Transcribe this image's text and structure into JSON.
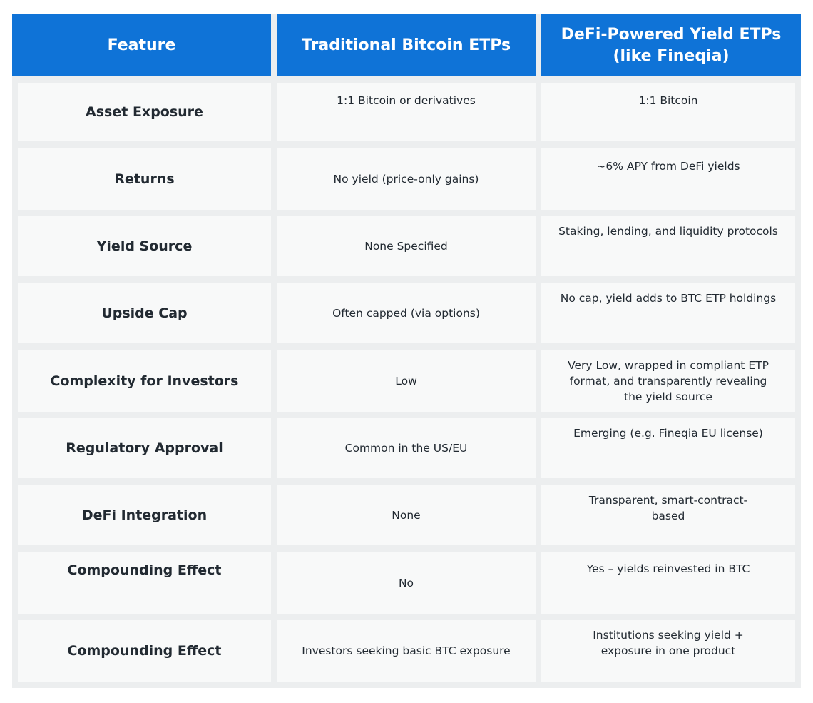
{
  "header": {
    "feature": "Feature",
    "traditional": "Traditional Bitcoin ETPs",
    "defi": "DeFi-Powered Yield ETPs (like Fineqia)"
  },
  "rows": [
    {
      "feature": "Asset Exposure",
      "traditional": "1:1 Bitcoin or derivatives",
      "defi": "1:1 Bitcoin"
    },
    {
      "feature": "Returns",
      "traditional": "No yield (price-only gains)",
      "defi": "~6% APY from DeFi yields"
    },
    {
      "feature": "Yield Source",
      "traditional": "None Specified",
      "defi": "Staking, lending, and liquidity protocols"
    },
    {
      "feature": "Upside Cap",
      "traditional": "Often capped (via options)",
      "defi": "No cap, yield adds to BTC ETP holdings"
    },
    {
      "feature": "Complexity for Investors",
      "traditional": "Low",
      "defi": "Very Low, wrapped in compliant ETP format, and transparently revealing the yield source"
    },
    {
      "feature": "Regulatory Approval",
      "traditional": "Common in the US/EU",
      "defi": "Emerging (e.g. Fineqia EU license)"
    },
    {
      "feature": "DeFi Integration",
      "traditional": "None",
      "defi": "Transparent, smart-contract-based"
    },
    {
      "feature": "Compounding Effect",
      "traditional": "No",
      "defi": "Yes – yields reinvested in BTC"
    },
    {
      "feature": "Compounding Effect",
      "traditional": "Investors seeking basic BTC exposure",
      "defi": "Institutions seeking yield + exposure in one product"
    }
  ]
}
